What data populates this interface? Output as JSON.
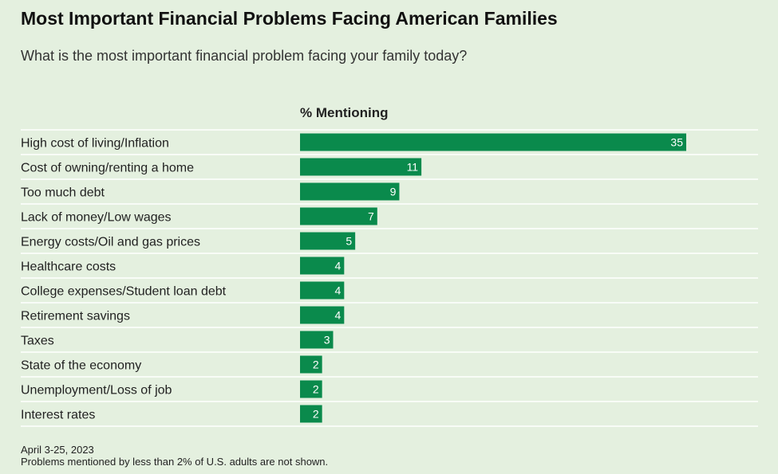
{
  "title": "Most Important Financial Problems Facing American Families",
  "subtitle": "What is the most important financial problem facing your family today?",
  "footer": {
    "date": "April 3-25, 2023",
    "note": "Problems mentioned by less than 2% of U.S. adults are not shown."
  },
  "colors": {
    "bar": "#0a8a4c",
    "background": "#e4f0df",
    "divider": "#ffffff",
    "bar_label": "#ffffff"
  },
  "chart_data": {
    "type": "bar",
    "orientation": "horizontal",
    "value_header": "% Mentioning",
    "categories": [
      "High cost of living/Inflation",
      "Cost of owning/renting a home",
      "Too much debt",
      "Lack of money/Low wages",
      "Energy costs/Oil and gas prices",
      "Healthcare costs",
      "College expenses/Student loan debt",
      "Retirement savings",
      "Taxes",
      "State of the economy",
      "Unemployment/Loss of job",
      "Interest rates"
    ],
    "values": [
      35,
      11,
      9,
      7,
      5,
      4,
      4,
      4,
      3,
      2,
      2,
      2
    ],
    "xlim": [
      0,
      35
    ],
    "grid": false,
    "legend": "none"
  }
}
